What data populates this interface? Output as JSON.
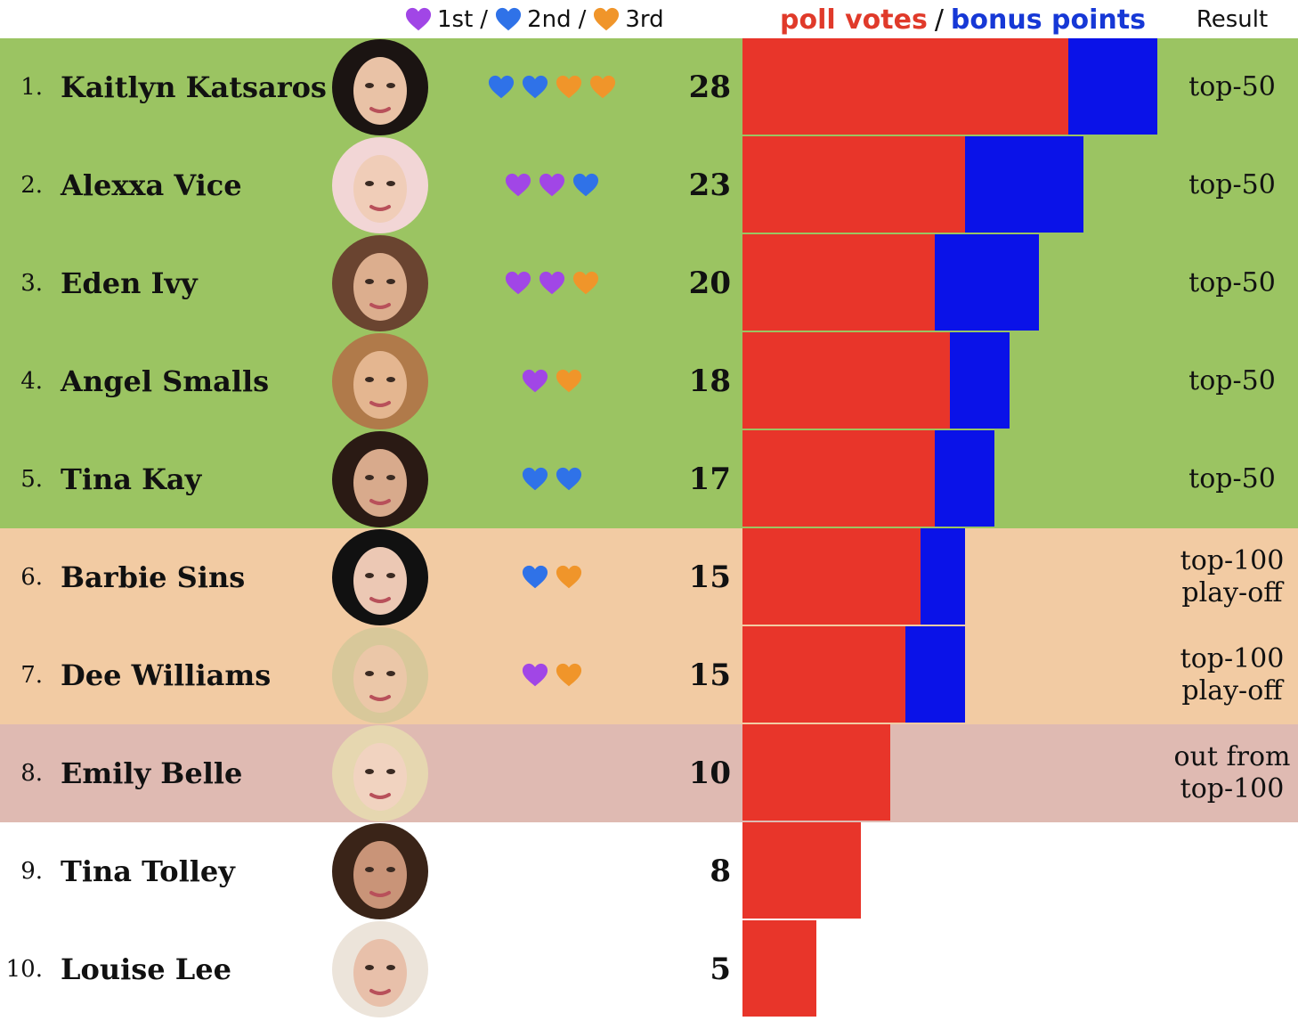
{
  "header": {
    "legend": {
      "first_label": "1st",
      "second_label": "2nd",
      "third_label": "3rd",
      "sep": "/"
    },
    "bar_title": {
      "poll_votes": "poll votes",
      "slash": "/",
      "bonus_points": "bonus points"
    },
    "result_label": "Result"
  },
  "colors": {
    "first_heart": "#a146e6",
    "second_heart": "#2f72e8",
    "third_heart": "#f0952a",
    "poll_votes": "#e8352a",
    "bonus_points": "#0a12e8",
    "tier_top50": "#9bc462",
    "tier_playoff": "#f2cba3",
    "tier_out": "#dfbab2",
    "tier_none": "#ffffff"
  },
  "chart_data": {
    "type": "bar",
    "orientation": "horizontal",
    "stacked": true,
    "categories": [
      "Kaitlyn Katsaros",
      "Alexxa Vice",
      "Eden Ivy",
      "Angel Smalls",
      "Tina Kay",
      "Barbie Sins",
      "Dee Williams",
      "Emily Belle",
      "Tina Tolley",
      "Louise Lee"
    ],
    "series": [
      {
        "name": "poll votes",
        "values": [
          22,
          15,
          13,
          14,
          13,
          12,
          11,
          10,
          8,
          5
        ]
      },
      {
        "name": "bonus points",
        "values": [
          6,
          8,
          7,
          4,
          4,
          3,
          4,
          0,
          0,
          0
        ]
      }
    ],
    "xlim": [
      0,
      28
    ],
    "grid": false,
    "rows": [
      {
        "rank": "1.",
        "name": "Kaitlyn Katsaros",
        "total": "28",
        "hearts": [
          "second",
          "second",
          "third",
          "third"
        ],
        "result": [
          "top-50"
        ],
        "tier": "top50"
      },
      {
        "rank": "2.",
        "name": "Alexxa Vice",
        "total": "23",
        "hearts": [
          "first",
          "first",
          "second"
        ],
        "result": [
          "top-50"
        ],
        "tier": "top50"
      },
      {
        "rank": "3.",
        "name": "Eden Ivy",
        "total": "20",
        "hearts": [
          "first",
          "first",
          "third"
        ],
        "result": [
          "top-50"
        ],
        "tier": "top50"
      },
      {
        "rank": "4.",
        "name": "Angel Smalls",
        "total": "18",
        "hearts": [
          "first",
          "third"
        ],
        "result": [
          "top-50"
        ],
        "tier": "top50"
      },
      {
        "rank": "5.",
        "name": "Tina Kay",
        "total": "17",
        "hearts": [
          "second",
          "second"
        ],
        "result": [
          "top-50"
        ],
        "tier": "top50"
      },
      {
        "rank": "6.",
        "name": "Barbie Sins",
        "total": "15",
        "hearts": [
          "second",
          "third"
        ],
        "result": [
          "top-100",
          "play-off"
        ],
        "tier": "playoff"
      },
      {
        "rank": "7.",
        "name": "Dee Williams",
        "total": "15",
        "hearts": [
          "first",
          "third"
        ],
        "result": [
          "top-100",
          "play-off"
        ],
        "tier": "playoff"
      },
      {
        "rank": "8.",
        "name": "Emily Belle",
        "total": "10",
        "hearts": [],
        "result": [
          "out from",
          "top-100"
        ],
        "tier": "out"
      },
      {
        "rank": "9.",
        "name": "Tina Tolley",
        "total": "8",
        "hearts": [],
        "result": [],
        "tier": "none"
      },
      {
        "rank": "10.",
        "name": "Louise Lee",
        "total": "5",
        "hearts": [],
        "result": [],
        "tier": "none"
      }
    ]
  }
}
